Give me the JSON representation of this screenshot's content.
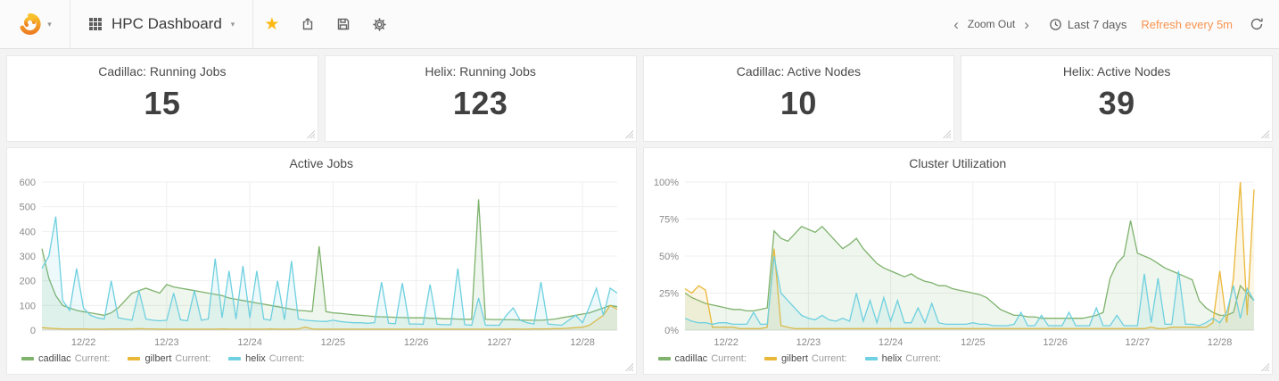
{
  "navbar": {
    "dashboard_title": "HPC Dashboard",
    "zoom_out_label": "Zoom Out",
    "time_range_label": "Last 7 days",
    "refresh_label": "Refresh every 5m"
  },
  "icons": {
    "caret_down": "▾",
    "star": "★",
    "chevron_left": "‹",
    "chevron_right": "›"
  },
  "colors": {
    "accent_orange": "#f9934e",
    "star_yellow": "#fdb813",
    "series_cadillac": "#7EB26D",
    "series_gilbert": "#EAB839",
    "series_helix": "#6ED0E0"
  },
  "stat_panels": [
    {
      "title": "Cadillac: Running Jobs",
      "value": "15"
    },
    {
      "title": "Helix: Running Jobs",
      "value": "123"
    },
    {
      "title": "Cadillac: Active Nodes",
      "value": "10"
    },
    {
      "title": "Helix: Active Nodes",
      "value": "39"
    }
  ],
  "legend": {
    "current_label": "Current:"
  },
  "chart_data": [
    {
      "type": "line",
      "title": "Active Jobs",
      "xlabel": "",
      "ylabel": "",
      "ylim": [
        0,
        600
      ],
      "grid": true,
      "legend_position": "bottom-left",
      "y_ticks": [
        0,
        100,
        200,
        300,
        400,
        500,
        600
      ],
      "y_tick_labels": [
        "0",
        "100",
        "200",
        "300",
        "400",
        "500",
        "600"
      ],
      "x_tick_indices": [
        6,
        18,
        30,
        42,
        54,
        66,
        78
      ],
      "x_tick_labels": [
        "12/22",
        "12/23",
        "12/24",
        "12/25",
        "12/26",
        "12/27",
        "12/28"
      ],
      "series": [
        {
          "name": "cadillac",
          "color": "#7EB26D",
          "values": [
            330,
            210,
            140,
            100,
            90,
            80,
            75,
            70,
            65,
            60,
            70,
            90,
            120,
            150,
            160,
            170,
            160,
            150,
            185,
            175,
            170,
            165,
            160,
            155,
            150,
            145,
            140,
            130,
            125,
            120,
            115,
            110,
            105,
            100,
            95,
            90,
            85,
            80,
            78,
            76,
            340,
            75,
            70,
            68,
            65,
            62,
            60,
            58,
            55,
            54,
            53,
            52,
            51,
            50,
            50,
            50,
            48,
            48,
            46,
            46,
            45,
            44,
            44,
            530,
            44,
            43,
            43,
            42,
            42,
            41,
            40,
            40,
            40,
            42,
            45,
            50,
            55,
            60,
            65,
            70,
            80,
            90,
            100,
            95
          ]
        },
        {
          "name": "gilbert",
          "color": "#EAB839",
          "values": [
            10,
            8,
            6,
            5,
            5,
            5,
            5,
            4,
            4,
            4,
            5,
            5,
            5,
            5,
            6,
            5,
            5,
            4,
            4,
            4,
            4,
            4,
            4,
            4,
            4,
            4,
            5,
            4,
            4,
            4,
            4,
            4,
            4,
            5,
            4,
            4,
            4,
            5,
            12,
            5,
            4,
            4,
            4,
            4,
            4,
            4,
            4,
            4,
            4,
            4,
            4,
            4,
            4,
            4,
            4,
            4,
            4,
            4,
            4,
            4,
            4,
            4,
            4,
            4,
            4,
            4,
            4,
            4,
            5,
            4,
            4,
            5,
            5,
            5,
            6,
            6,
            8,
            10,
            12,
            20,
            40,
            60,
            100,
            85
          ]
        },
        {
          "name": "helix",
          "color": "#6ED0E0",
          "values": [
            250,
            300,
            460,
            120,
            80,
            250,
            90,
            60,
            50,
            45,
            200,
            50,
            45,
            40,
            160,
            45,
            40,
            38,
            40,
            150,
            42,
            38,
            160,
            40,
            45,
            290,
            50,
            240,
            45,
            260,
            50,
            240,
            45,
            40,
            200,
            42,
            280,
            45,
            40,
            38,
            36,
            35,
            40,
            35,
            32,
            30,
            30,
            28,
            30,
            195,
            28,
            26,
            190,
            25,
            25,
            24,
            185,
            24,
            22,
            22,
            250,
            22,
            20,
            130,
            20,
            20,
            20,
            60,
            90,
            40,
            30,
            25,
            195,
            25,
            22,
            20,
            40,
            60,
            30,
            95,
            170,
            60,
            170,
            150
          ]
        }
      ]
    },
    {
      "type": "line",
      "title": "Cluster Utilization",
      "xlabel": "",
      "ylabel": "",
      "ylim": [
        0,
        100
      ],
      "grid": true,
      "legend_position": "bottom-left",
      "y_ticks": [
        0,
        25,
        50,
        75,
        100
      ],
      "y_tick_labels": [
        "0%",
        "25%",
        "50%",
        "75%",
        "100%"
      ],
      "x_tick_indices": [
        6,
        18,
        30,
        42,
        54,
        66,
        78
      ],
      "x_tick_labels": [
        "12/22",
        "12/23",
        "12/24",
        "12/25",
        "12/26",
        "12/27",
        "12/28"
      ],
      "series": [
        {
          "name": "cadillac",
          "color": "#7EB26D",
          "values": [
            25,
            22,
            20,
            18,
            17,
            16,
            15,
            14,
            14,
            13,
            13,
            14,
            15,
            67,
            62,
            60,
            65,
            70,
            68,
            66,
            70,
            65,
            60,
            55,
            58,
            62,
            55,
            50,
            45,
            42,
            40,
            38,
            36,
            38,
            35,
            33,
            32,
            30,
            30,
            28,
            27,
            26,
            25,
            24,
            22,
            18,
            14,
            12,
            10,
            10,
            9,
            9,
            8,
            8,
            8,
            8,
            8,
            8,
            8,
            9,
            10,
            12,
            35,
            45,
            50,
            74,
            52,
            50,
            48,
            45,
            42,
            40,
            38,
            36,
            34,
            20,
            15,
            12,
            10,
            10,
            12,
            30,
            25,
            20
          ]
        },
        {
          "name": "gilbert",
          "color": "#EAB839",
          "values": [
            28,
            25,
            30,
            27,
            2,
            2,
            2,
            2,
            1,
            1,
            1,
            1,
            2,
            55,
            3,
            2,
            1,
            1,
            1,
            1,
            1,
            1,
            1,
            1,
            1,
            1,
            1,
            1,
            1,
            1,
            1,
            1,
            1,
            1,
            1,
            1,
            1,
            1,
            1,
            1,
            1,
            1,
            1,
            1,
            1,
            1,
            1,
            1,
            1,
            1,
            1,
            1,
            1,
            1,
            1,
            1,
            1,
            1,
            1,
            1,
            1,
            1,
            1,
            1,
            1,
            1,
            1,
            1,
            2,
            1,
            1,
            2,
            2,
            2,
            2,
            2,
            2,
            5,
            40,
            5,
            35,
            100,
            10,
            95
          ]
        },
        {
          "name": "helix",
          "color": "#6ED0E0",
          "values": [
            8,
            6,
            5,
            5,
            4,
            5,
            5,
            4,
            4,
            4,
            12,
            4,
            4,
            50,
            25,
            20,
            15,
            10,
            8,
            7,
            10,
            7,
            6,
            8,
            6,
            25,
            6,
            20,
            5,
            22,
            6,
            20,
            5,
            5,
            15,
            5,
            18,
            5,
            4,
            4,
            4,
            4,
            5,
            4,
            4,
            3,
            3,
            3,
            4,
            12,
            3,
            3,
            10,
            3,
            3,
            3,
            12,
            3,
            3,
            3,
            15,
            3,
            3,
            10,
            3,
            3,
            3,
            38,
            5,
            35,
            4,
            4,
            40,
            4,
            4,
            3,
            5,
            8,
            5,
            12,
            30,
            8,
            28,
            20
          ]
        }
      ]
    }
  ]
}
